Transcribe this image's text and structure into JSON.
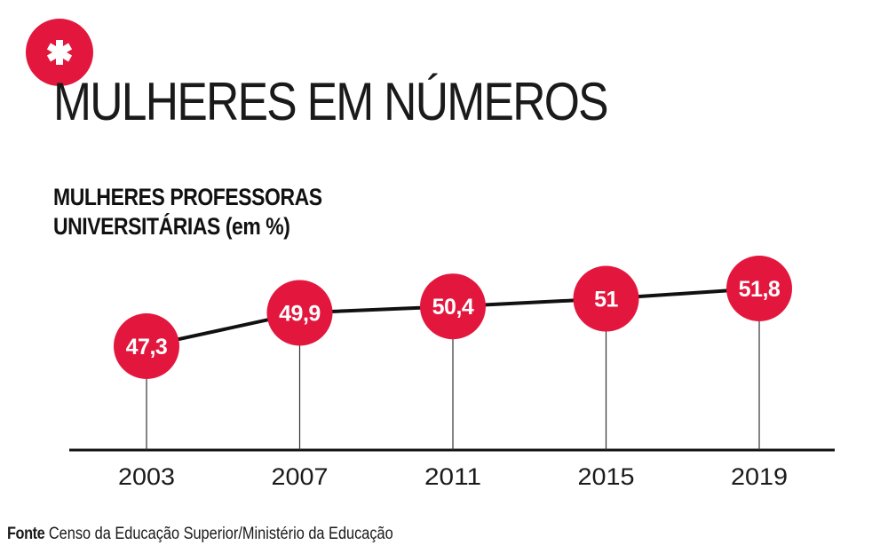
{
  "header": {
    "badge_icon": "asterisk-icon",
    "title": "MULHERES EM NÚMEROS"
  },
  "colors": {
    "accent": "#e3173e",
    "line": "#111111",
    "text": "#111111"
  },
  "chart_data": {
    "type": "line",
    "title_lines": [
      "MULHERES PROFESSORAS",
      "UNIVERSITÁRIAS (em %)"
    ],
    "x": [
      "2003",
      "2007",
      "2011",
      "2015",
      "2019"
    ],
    "values": [
      47.3,
      49.9,
      50.4,
      51,
      51.8
    ],
    "data_labels": [
      "47,3",
      "49,9",
      "50,4",
      "51",
      "51,8"
    ],
    "grid": false
  },
  "footer": {
    "source_label": "Fonte",
    "source_text": "Censo da Educação Superior/Ministério da Educação"
  }
}
